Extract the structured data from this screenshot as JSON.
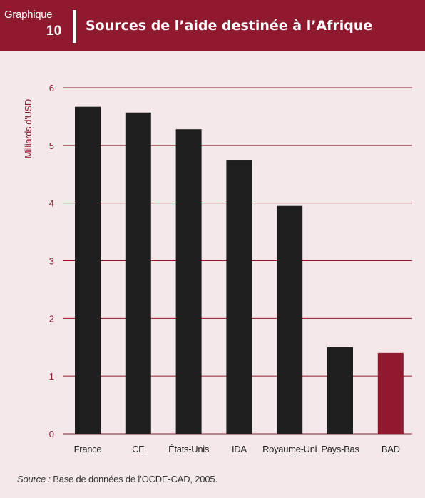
{
  "header": {
    "label_word": "Graphique",
    "label_number": "10",
    "title": "Sources de l’aide destinée à l’Afrique"
  },
  "colors": {
    "header_bg": "#8f1a2f",
    "page_bg": "#f4e8ea",
    "bar_default": "#1e1e1e",
    "bar_highlight": "#8f1a2f",
    "gridline": "#8f1a2f",
    "tick_label": "#8f1a2f",
    "category_label": "#222222"
  },
  "chart_data": {
    "type": "bar",
    "title": "Sources de l’aide destinée à l’Afrique",
    "xlabel": "",
    "ylabel": "Milliards d’USD",
    "ylim": [
      0,
      6
    ],
    "yticks": [
      0,
      1,
      2,
      3,
      4,
      5,
      6
    ],
    "grid": true,
    "legend": "none",
    "categories": [
      "France",
      "CE",
      "États-Unis",
      "IDA",
      "Royaume-Uni",
      "Pays-Bas",
      "BAD"
    ],
    "values": [
      5.67,
      5.57,
      5.28,
      4.75,
      3.95,
      1.5,
      1.4
    ],
    "highlight_category": "BAD"
  },
  "source": {
    "label": "Source :",
    "text": " Base de données de l’OCDE-CAD, 2005."
  }
}
